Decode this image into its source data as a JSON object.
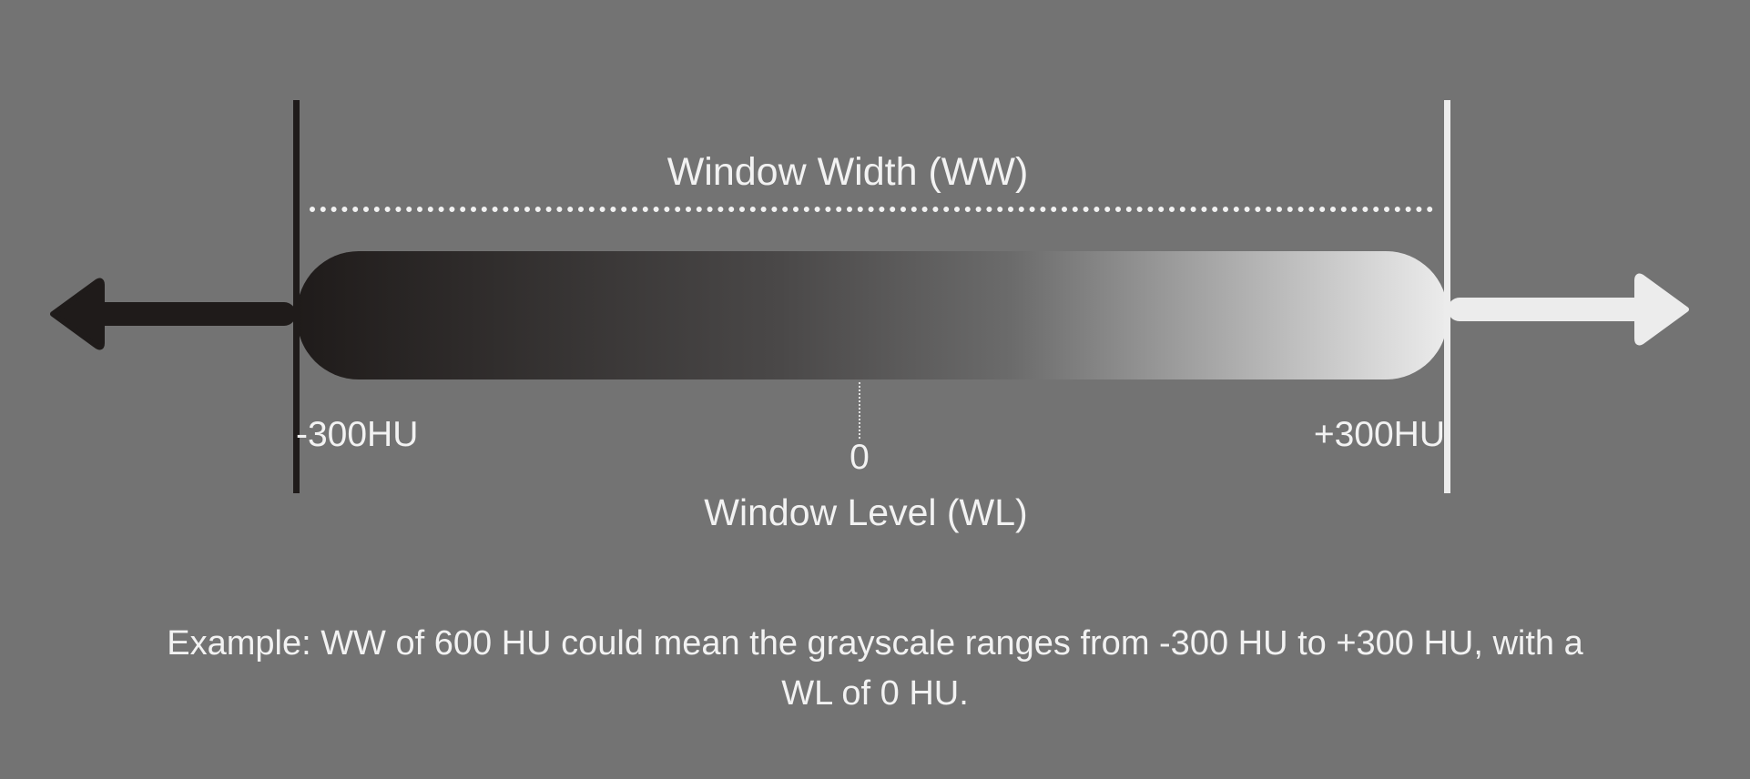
{
  "colors": {
    "background": "#737373",
    "dark_end": "#1f1b1a",
    "light_end": "#ececec",
    "text": "#f2f2f2"
  },
  "diagram": {
    "window_width_label": "Window Width (WW)",
    "left_value_label": "-300HU",
    "center_value_label": "0",
    "right_value_label": "+300HU",
    "window_level_label": "Window Level (WL)"
  },
  "caption": {
    "line1": "Example: WW of 600 HU could mean the grayscale ranges from -300 HU to +300 HU, with a",
    "line2": "WL of 0 HU."
  }
}
